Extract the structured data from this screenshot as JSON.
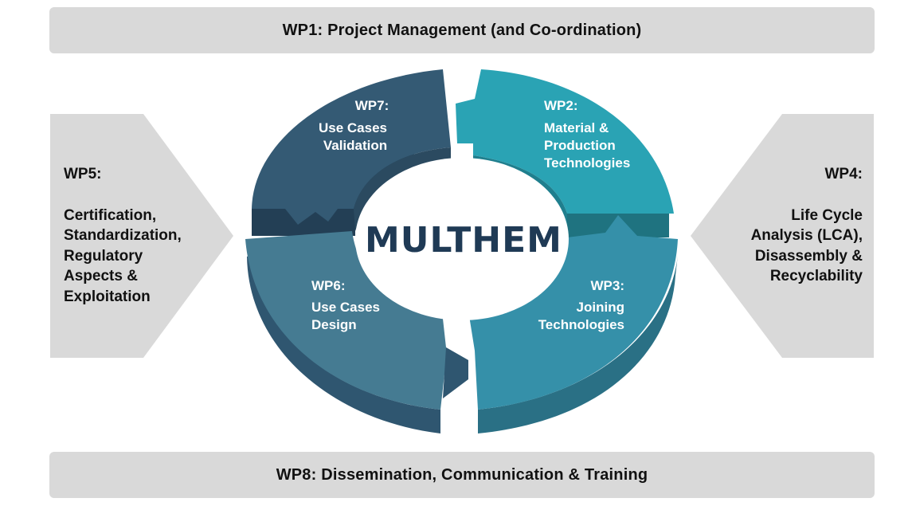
{
  "top_banner": {
    "label": "WP1: Project Management (and Co-ordination)"
  },
  "bottom_banner": {
    "label": "WP8: Dissemination, Communication & Training"
  },
  "center": {
    "label": "MULTHEM"
  },
  "segments": {
    "wp7": {
      "lines": [
        "WP7:",
        "Use Cases",
        "Validation"
      ],
      "color": "#345a74"
    },
    "wp2": {
      "lines": [
        "WP2:",
        "Material &",
        "Production",
        "Technologies"
      ],
      "color": "#2aa3b4"
    },
    "wp3": {
      "lines": [
        "WP3:",
        "Joining",
        "Technologies"
      ],
      "color": "#3590a9"
    },
    "wp6": {
      "lines": [
        "WP6:",
        "Use Cases",
        "Design"
      ],
      "color": "#457b92"
    }
  },
  "left_panel": {
    "lines": [
      "WP5:",
      "",
      "Certification,",
      "Standardization,",
      "Regulatory",
      "Aspects &",
      "Exploitation"
    ]
  },
  "right_panel": {
    "lines": [
      "WP4:",
      "",
      "Life Cycle",
      "Analysis (LCA),",
      "Disassembly &",
      "Recyclability"
    ]
  }
}
